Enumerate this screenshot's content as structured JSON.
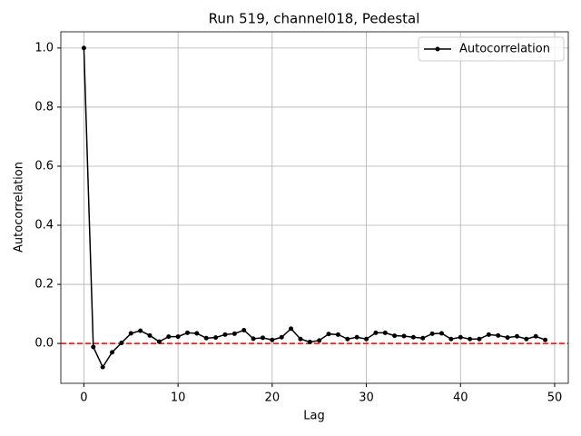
{
  "chart_data": {
    "type": "line",
    "title": "Run 519, channel018, Pedestal",
    "x_label": "Lag",
    "y_label": "Autocorrelation",
    "x": [
      0,
      1,
      2,
      3,
      4,
      5,
      6,
      7,
      8,
      9,
      10,
      11,
      12,
      13,
      14,
      15,
      16,
      17,
      18,
      19,
      20,
      21,
      22,
      23,
      24,
      25,
      26,
      27,
      28,
      29,
      30,
      31,
      32,
      33,
      34,
      35,
      36,
      37,
      38,
      39,
      40,
      41,
      42,
      43,
      44,
      45,
      46,
      47,
      48,
      49
    ],
    "series": [
      {
        "name": "Autocorrelation",
        "color": "#000000",
        "values": [
          1.0,
          -0.012,
          -0.08,
          -0.03,
          0.002,
          0.034,
          0.043,
          0.027,
          0.006,
          0.023,
          0.023,
          0.036,
          0.034,
          0.018,
          0.02,
          0.03,
          0.033,
          0.045,
          0.016,
          0.019,
          0.012,
          0.021,
          0.05,
          0.015,
          0.005,
          0.01,
          0.032,
          0.03,
          0.015,
          0.021,
          0.015,
          0.036,
          0.036,
          0.026,
          0.025,
          0.021,
          0.018,
          0.033,
          0.034,
          0.015,
          0.021,
          0.015,
          0.015,
          0.03,
          0.027,
          0.02,
          0.024,
          0.015,
          0.024,
          0.012
        ]
      }
    ],
    "xlim": [
      -2.45,
      51.45
    ],
    "ylim": [
      -0.135,
      1.055
    ],
    "xticks": [
      0,
      10,
      20,
      30,
      40,
      50
    ],
    "yticks": [
      {
        "value": 0,
        "label": "0.0"
      },
      0.2,
      0.4,
      0.6,
      0.8,
      {
        "value": 1,
        "label": "1.0"
      }
    ],
    "grid": true,
    "legend": "upper-right",
    "reference_line": {
      "value": 0,
      "color": "#ff0000"
    }
  }
}
